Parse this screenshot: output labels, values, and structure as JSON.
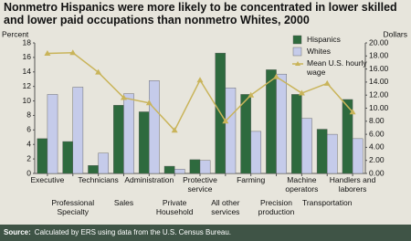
{
  "chart_data": {
    "type": "bar",
    "title": "Nonmetro Hispanics were more likely to be concentrated in lower skilled and lower paid occupations than nonmetro Whites, 2000",
    "source_label": "Source:",
    "source_text": "Calculated by ERS using data from the U.S. Census Bureau.",
    "ylabel": "Percent",
    "y2label": "Dollars",
    "categories": [
      "Executive",
      "Professional Specialty",
      "Technicians",
      "Sales",
      "Administration",
      "Private Household",
      "Protective service",
      "All other services",
      "Farming",
      "Precision production",
      "Machine operators",
      "Transportation",
      "Handlers and laborers"
    ],
    "series": [
      {
        "name": "Hispanics",
        "color": "#2e6a3e",
        "values": [
          4.8,
          4.4,
          1.1,
          9.4,
          8.5,
          1.0,
          1.9,
          16.6,
          10.9,
          14.3,
          10.9,
          6.1,
          10.2
        ]
      },
      {
        "name": "Whites",
        "color": "#c5cbea",
        "values": [
          10.9,
          11.9,
          2.8,
          11.0,
          12.8,
          0.6,
          1.8,
          11.8,
          5.8,
          13.7,
          7.6,
          5.4,
          4.8
        ]
      },
      {
        "name": "Mean U.S. hourly wage",
        "color": "#c9b45a",
        "type": "line",
        "axis": "y2",
        "values": [
          18.4,
          18.5,
          15.5,
          11.6,
          10.8,
          6.6,
          14.3,
          8.0,
          12.0,
          14.8,
          12.3,
          13.8,
          9.4
        ]
      }
    ],
    "ylim": [
      0,
      18
    ],
    "yticks": [
      0,
      2,
      4,
      6,
      8,
      10,
      12,
      14,
      16,
      18
    ],
    "y2lim": [
      0,
      20
    ],
    "y2ticks": [
      {
        "value": 0,
        "label": "0.00"
      },
      {
        "value": 2,
        "label": "2.00"
      },
      {
        "value": 4,
        "label": "4.00"
      },
      {
        "value": 6,
        "label": "6.00"
      },
      {
        "value": 8,
        "label": "8.00"
      },
      {
        "value": 10,
        "label": "10.00"
      },
      {
        "value": 12,
        "label": "12.00"
      },
      {
        "value": 14,
        "label": "14.00"
      },
      {
        "value": 16,
        "label": "16.00"
      },
      {
        "value": 18,
        "label": "18.00"
      },
      {
        "value": 20,
        "label": "20.00"
      }
    ],
    "grid": false,
    "legend": "upper right"
  }
}
